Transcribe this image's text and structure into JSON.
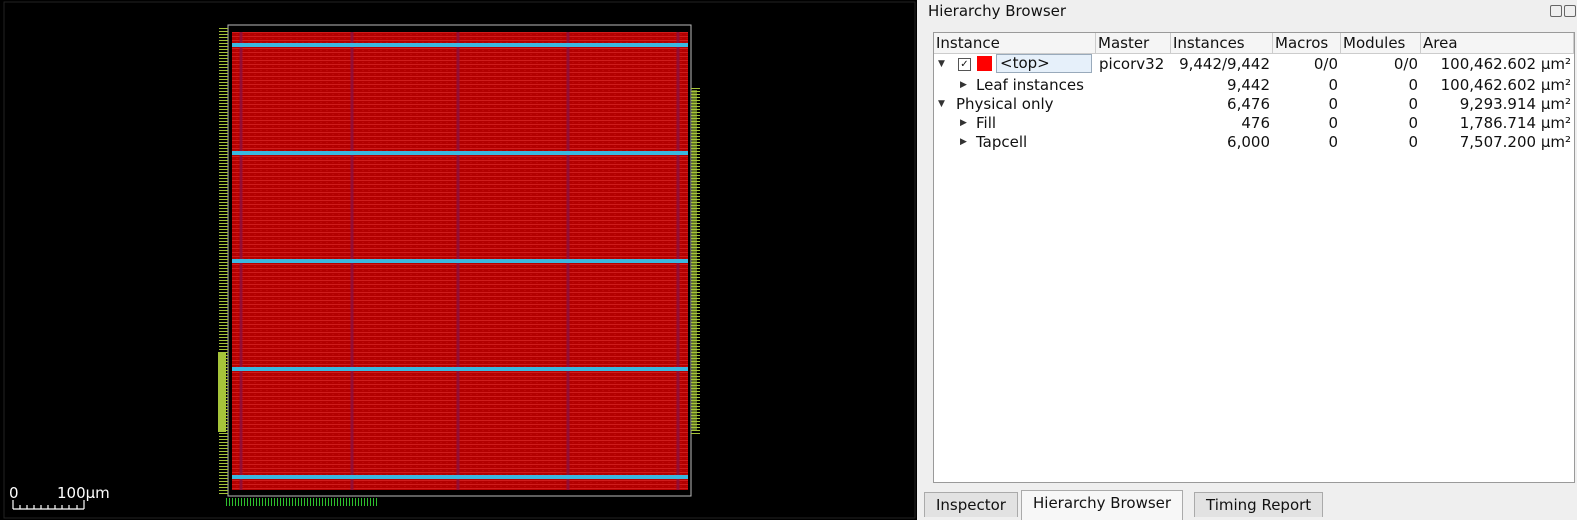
{
  "canvas": {
    "scale_bar": {
      "start": "0",
      "end": "100µm"
    }
  },
  "panel": {
    "title": "Hierarchy Browser",
    "table": {
      "columns": [
        "Instance",
        "Master",
        "Instances",
        "Macros",
        "Modules",
        "Area"
      ],
      "rows": [
        {
          "instance": "<top>",
          "master": "picorv32",
          "instances": "9,442/9,442",
          "macros": "0/0",
          "modules": "0/0",
          "area": "100,462.602 µm²"
        },
        {
          "instance": "Leaf instances",
          "instances": "9,442",
          "macros": "0",
          "modules": "0",
          "area": "100,462.602 µm²"
        },
        {
          "instance": "Physical only",
          "instances": "6,476",
          "macros": "0",
          "modules": "0",
          "area": "9,293.914 µm²"
        },
        {
          "instance": "Fill",
          "instances": "476",
          "macros": "0",
          "modules": "0",
          "area": "1,786.714 µm²"
        },
        {
          "instance": "Tapcell",
          "instances": "6,000",
          "macros": "0",
          "modules": "0",
          "area": "7,507.200 µm²"
        }
      ]
    }
  },
  "tabs": [
    "Inspector",
    "Hierarchy Browser",
    "Timing Report"
  ]
}
